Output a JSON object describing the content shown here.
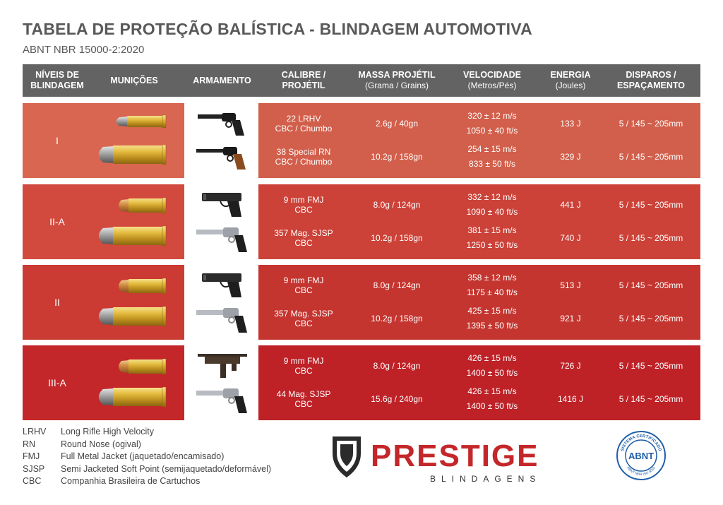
{
  "title": "TABELA DE PROTEÇÃO BALÍSTICA - BLINDAGEM AUTOMOTIVA",
  "subtitle": "ABNT NBR 15000-2:2020",
  "header": {
    "niveis": "NÍVEIS DE",
    "niveis2": "BLINDAGEM",
    "municoes": "MUNIÇÕES",
    "armamento": "ARMAMENTO",
    "calibre": "CALIBRE /",
    "calibre2": "PROJÉTIL",
    "massa": "MASSA PROJÉTIL",
    "massa2": "(Grama / Grains)",
    "velocidade": "VELOCIDADE",
    "velocidade2": "(Metros/Pés)",
    "energia": "ENERGIA",
    "energia2": "(Joules)",
    "disparos": "DISPAROS /",
    "disparos2": "ESPAÇAMENTO"
  },
  "levels": [
    {
      "name": "I",
      "color_left": "#D86650",
      "color_right": "#D25F4B",
      "rows": [
        {
          "cal1": "22 LRHV",
          "cal2": "CBC / Chumbo",
          "massa": "2.6g / 40gn",
          "vel1": "320 ± 12 m/s",
          "vel2": "1050 ± 40 ft/s",
          "energia": "133 J",
          "disparos": "5 / 145 ~ 205mm"
        },
        {
          "cal1": "38 Special RN",
          "cal2": "CBC / Chumbo",
          "massa": "10.2g / 158gn",
          "vel1": "254 ± 15 m/s",
          "vel2": "833 ± 50 ft/s",
          "energia": "329 J",
          "disparos": "5 / 145 ~ 205mm"
        }
      ]
    },
    {
      "name": "II-A",
      "color_left": "#D2493D",
      "color_right": "#CC4238",
      "rows": [
        {
          "cal1": "9 mm FMJ",
          "cal2": "CBC",
          "massa": "8.0g / 124gn",
          "vel1": "332 ± 12 m/s",
          "vel2": "1090 ± 40 ft/s",
          "energia": "441 J",
          "disparos": "5 / 145 ~ 205mm"
        },
        {
          "cal1": "357 Mag. SJSP",
          "cal2": "CBC",
          "massa": "10.2g / 158gn",
          "vel1": "381 ± 15 m/s",
          "vel2": "1250 ± 50 ft/s",
          "energia": "740 J",
          "disparos": "5 / 145 ~ 205mm"
        }
      ]
    },
    {
      "name": "II",
      "color_left": "#CB3B33",
      "color_right": "#C5352F",
      "rows": [
        {
          "cal1": "9 mm FMJ",
          "cal2": "CBC",
          "massa": "8.0g / 124gn",
          "vel1": "358 ± 12 m/s",
          "vel2": "1175 ± 40 ft/s",
          "energia": "513 J",
          "disparos": "5 / 145 ~ 205mm"
        },
        {
          "cal1": "357 Mag. SJSP",
          "cal2": "CBC",
          "massa": "10.2g / 158gn",
          "vel1": "425 ± 15 m/s",
          "vel2": "1395 ± 50 ft/s",
          "energia": "921 J",
          "disparos": "5 / 145 ~ 205mm"
        }
      ]
    },
    {
      "name": "III-A",
      "color_left": "#C4272A",
      "color_right": "#BE2227",
      "rows": [
        {
          "cal1": "9 mm FMJ",
          "cal2": "CBC",
          "massa": "8.0g / 124gn",
          "vel1": "426 ± 15 m/s",
          "vel2": "1400 ± 50 ft/s",
          "energia": "726 J",
          "disparos": "5 / 145 ~ 205mm"
        },
        {
          "cal1": "44 Mag. SJSP",
          "cal2": "CBC",
          "massa": "15.6g / 240gn",
          "vel1": "426 ± 15 m/s",
          "vel2": "1400 ± 50 ft/s",
          "energia": "1416 J",
          "disparos": "5 / 145 ~ 205mm"
        }
      ]
    }
  ],
  "legend": [
    {
      "abbr": "LRHV",
      "def": "Long Rifle High Velocity"
    },
    {
      "abbr": "RN",
      "def": "Round Nose (ogival)"
    },
    {
      "abbr": "FMJ",
      "def": "Full Metal Jacket (jaquetado/encamisado)"
    },
    {
      "abbr": "SJSP",
      "def": "Semi Jacketed Soft Point (semijaquetado/deformável)"
    },
    {
      "abbr": "CBC",
      "def": "Companhia Brasileira de Cartuchos"
    }
  ],
  "brand": {
    "name": "PRESTIGE",
    "tagline": "BLINDAGENS",
    "color": "#C4272A",
    "seal_top": "SISTEMA CERTIFICADO",
    "seal_bottom": "ABNT NBR ISO 9001",
    "seal_center": "ABNT",
    "seal_color": "#1F5FA8"
  }
}
